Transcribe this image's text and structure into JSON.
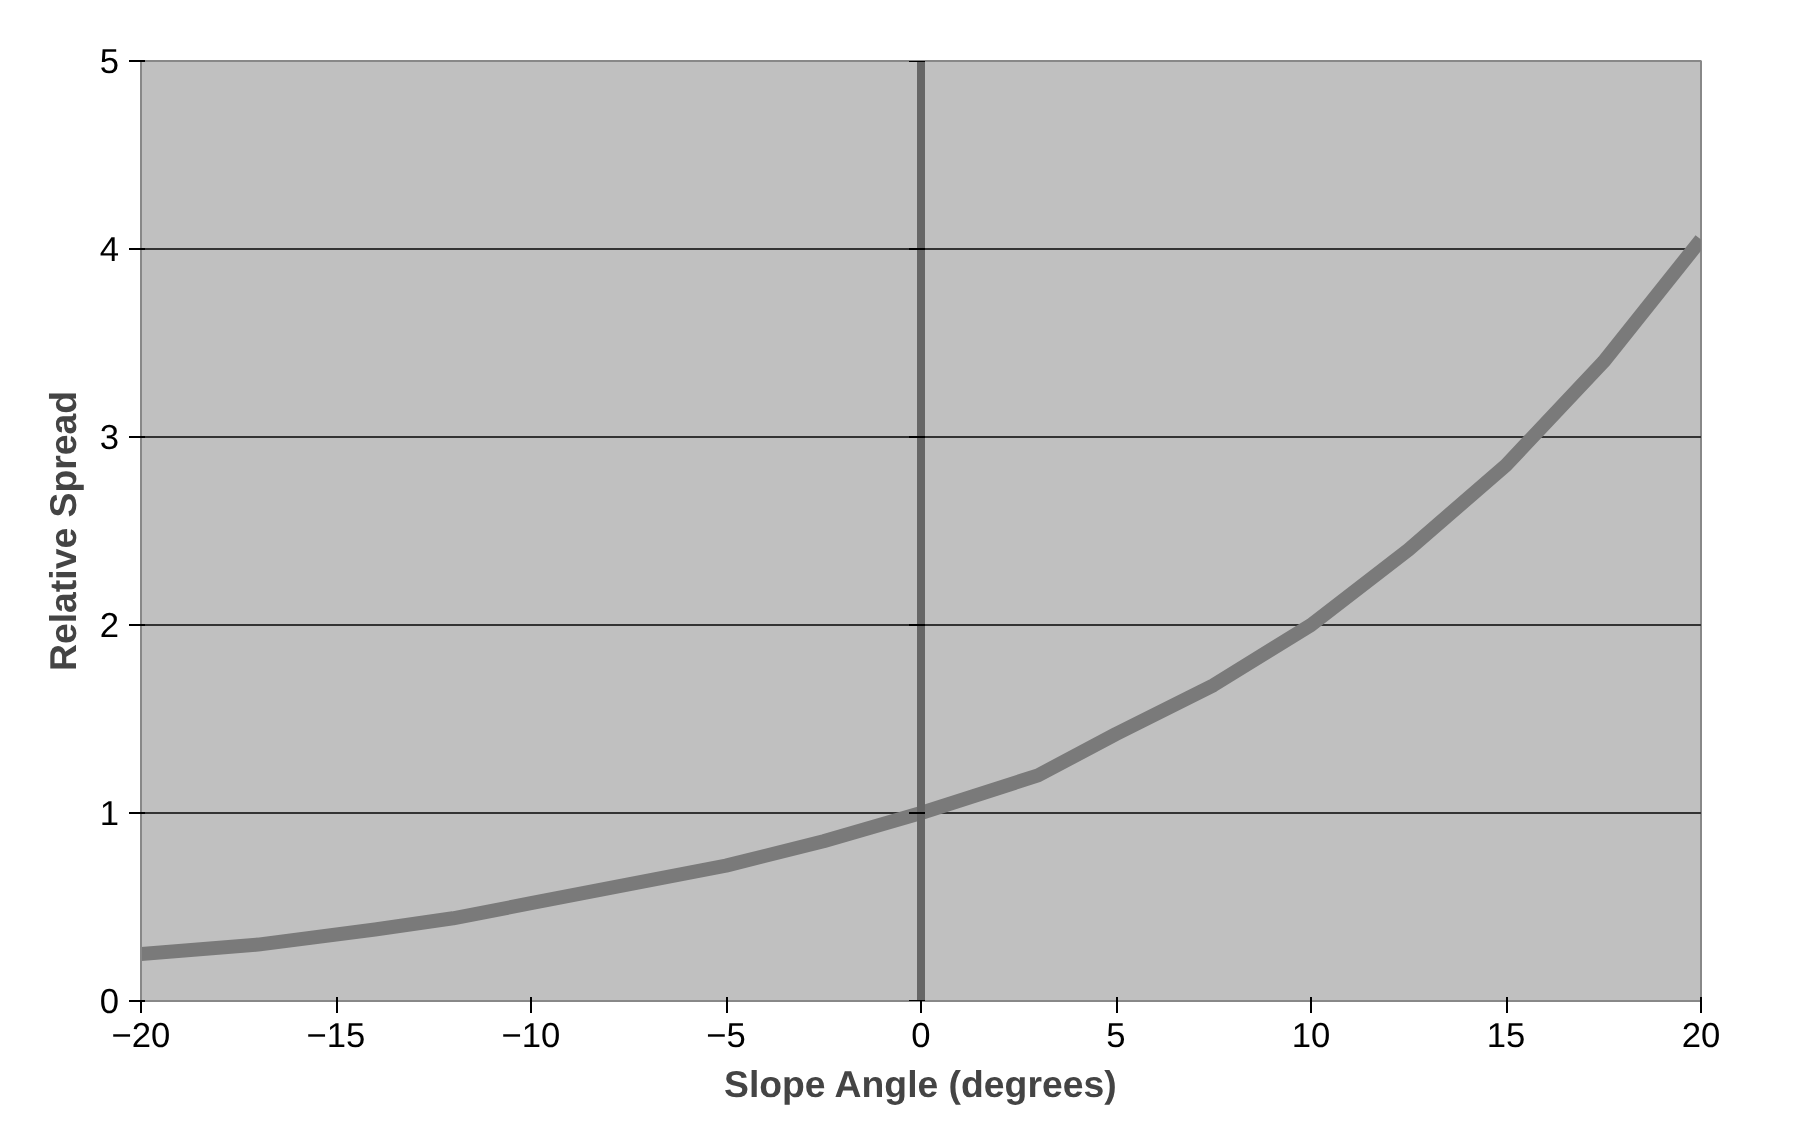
{
  "chart_data": {
    "type": "line",
    "xlabel": "Slope Angle (degrees)",
    "ylabel": "Relative Spread",
    "x": [
      -20,
      -17,
      -14,
      -12,
      -10,
      -7.5,
      -5,
      -2.5,
      0,
      3,
      5,
      7.5,
      10,
      12.5,
      15,
      17.5,
      20
    ],
    "series": [
      {
        "color": "#7a7a7a",
        "values": [
          0.25,
          0.3,
          0.38,
          0.44,
          0.52,
          0.62,
          0.72,
          0.85,
          1.0,
          1.2,
          1.42,
          1.68,
          2.0,
          2.4,
          2.85,
          3.4,
          4.05
        ]
      }
    ],
    "xlim": [
      -20,
      20
    ],
    "ylim": [
      0,
      5
    ],
    "xticks": [
      -20,
      -15,
      -10,
      -5,
      0,
      5,
      10,
      15,
      20
    ],
    "yticks": [
      0,
      1,
      2,
      3,
      4,
      5
    ],
    "grid": "y",
    "marker": "none",
    "line_style": "solid"
  }
}
